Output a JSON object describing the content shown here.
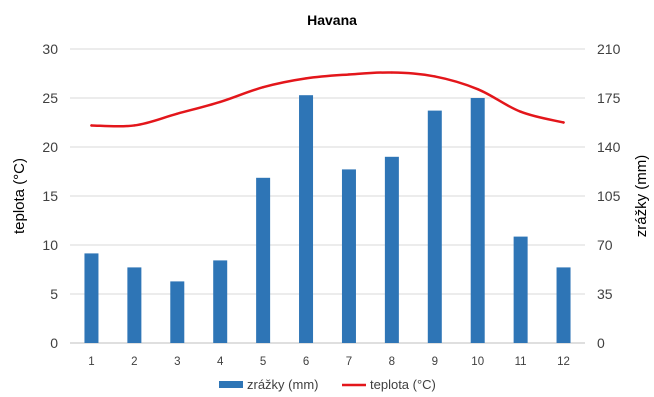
{
  "chart_data": {
    "type": "bar",
    "title": "Havana",
    "categories": [
      "1",
      "2",
      "3",
      "4",
      "5",
      "6",
      "7",
      "8",
      "9",
      "10",
      "11",
      "12"
    ],
    "y_left": {
      "label": "teplota (°C)",
      "ylim": [
        0,
        30
      ],
      "ticks": [
        0,
        5,
        10,
        15,
        20,
        25,
        30
      ]
    },
    "y_right": {
      "label": "zrážky (mm)",
      "ylim": [
        0,
        210
      ],
      "ticks": [
        0,
        35,
        70,
        105,
        140,
        175,
        210
      ]
    },
    "series": [
      {
        "name": "zrážky (mm)",
        "type": "bar",
        "axis": "right",
        "color": "#2e75b6",
        "values": [
          64,
          54,
          44,
          59,
          118,
          177,
          124,
          133,
          166,
          175,
          76,
          54
        ]
      },
      {
        "name": "teplota (°C)",
        "type": "line",
        "axis": "left",
        "color": "#e3161b",
        "values": [
          22.2,
          22.2,
          23.4,
          24.6,
          26.1,
          27.0,
          27.4,
          27.6,
          27.2,
          25.9,
          23.6,
          22.5
        ]
      }
    ],
    "grid": true,
    "legend_position": "bottom"
  }
}
